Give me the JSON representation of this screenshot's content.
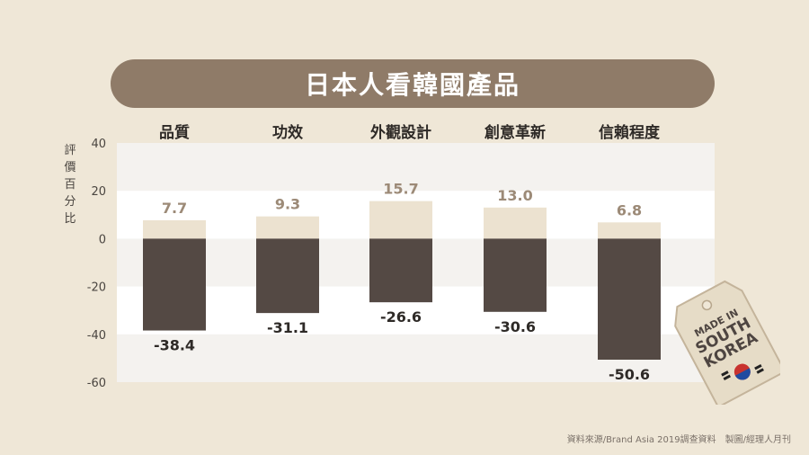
{
  "title": "日本人看韓國產品",
  "ylabel_chars": [
    "評",
    "價",
    "百",
    "分",
    "比"
  ],
  "source": "資料來源/Brand Asia 2019調查資料　製圖/經理人月刊",
  "tag": {
    "line1": "MADE IN",
    "line2": "SOUTH",
    "line3": "KOREA",
    "icon": "south-korea-flag"
  },
  "colors": {
    "positive": "#ece2d0",
    "negative": "#544944",
    "positive_label": "#9c8a77",
    "negative_label": "#2e2a27",
    "banner": "#8f7b68"
  },
  "chart_data": {
    "type": "bar",
    "categories": [
      "品質",
      "功效",
      "外觀設計",
      "創意革新",
      "信賴程度"
    ],
    "series": [
      {
        "values": [
          7.7,
          9.3,
          15.7,
          13.0,
          6.8
        ]
      },
      {
        "values": [
          -38.4,
          -31.1,
          -26.6,
          -30.6,
          -50.6
        ]
      }
    ],
    "value_labels": [
      [
        "7.7",
        "9.3",
        "15.7",
        "13.0",
        "6.8"
      ],
      [
        "-38.4",
        "-31.1",
        "-26.6",
        "-30.6",
        "-50.6"
      ]
    ],
    "ylim": [
      -60,
      40
    ],
    "yticks": [
      "40",
      "20",
      "0",
      "-20",
      "-40",
      "-60"
    ],
    "ytick_values": [
      40,
      20,
      0,
      -20,
      -40,
      -60
    ],
    "title": "日本人看韓國產品",
    "ylabel": "評價百分比",
    "xlabel": "",
    "grid": "alternating horizontal bands"
  }
}
